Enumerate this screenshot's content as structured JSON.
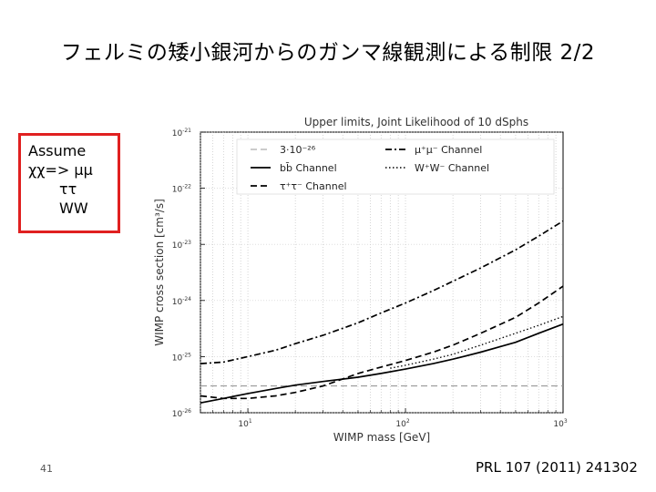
{
  "slide": {
    "title": "フェルミの矮小銀河からのガンマ線観測による制限 2/2",
    "page_number": "41",
    "reference": "PRL 107 (2011) 241302"
  },
  "assume_box": {
    "line1": "Assume",
    "line2": "χχ=> μμ",
    "line3": "ττ",
    "line4": "WW",
    "border_color": "#e02020"
  },
  "chart_data": {
    "type": "line",
    "title": "Upper limits, Joint Likelihood of 10 dSphs",
    "xlabel": "WIMP mass [GeV]",
    "ylabel": "WIMP cross section [cm³/s]",
    "x_scale": "log",
    "y_scale": "log",
    "xlim": [
      5,
      1000
    ],
    "ylim": [
      1e-26,
      1e-21
    ],
    "x_ticks": [
      {
        "label": "10",
        "exp": "1",
        "value": 10
      },
      {
        "label": "10",
        "exp": "2",
        "value": 100
      },
      {
        "label": "10",
        "exp": "3",
        "value": 1000
      }
    ],
    "y_ticks": [
      {
        "label": "10",
        "exp": "-21",
        "value": 1e-21
      },
      {
        "label": "10",
        "exp": "-22",
        "value": 1e-22
      },
      {
        "label": "10",
        "exp": "-23",
        "value": 1e-23
      },
      {
        "label": "10",
        "exp": "-24",
        "value": 1e-24
      },
      {
        "label": "10",
        "exp": "-25",
        "value": 1e-25
      },
      {
        "label": "10",
        "exp": "-26",
        "value": 1e-26
      }
    ],
    "legend_position": "top",
    "series": [
      {
        "name": "3·10⁻²⁶",
        "style": "dashed",
        "color": "#999999",
        "x": [
          5,
          1000
        ],
        "y": [
          3e-26,
          3e-26
        ]
      },
      {
        "name": "bb̄ Channel",
        "style": "solid",
        "color": "#000000",
        "x": [
          5,
          7,
          10,
          15,
          20,
          30,
          50,
          70,
          100,
          150,
          200,
          300,
          500,
          700,
          1000
        ],
        "y": [
          1.5e-26,
          1.8e-26,
          2.2e-26,
          2.7e-26,
          3.1e-26,
          3.6e-26,
          4.3e-26,
          5e-26,
          6e-26,
          7.5e-26,
          9e-26,
          1.2e-25,
          1.8e-25,
          2.6e-25,
          3.8e-25
        ]
      },
      {
        "name": "τ⁺τ⁻ Channel",
        "style": "dashed",
        "color": "#000000",
        "x": [
          5,
          7,
          10,
          15,
          20,
          30,
          40,
          50,
          70,
          100,
          150,
          200,
          300,
          500,
          700,
          1000
        ],
        "y": [
          2e-26,
          1.8e-26,
          1.8e-26,
          2e-26,
          2.3e-26,
          3e-26,
          4e-26,
          5e-26,
          6.5e-26,
          8.5e-26,
          1.2e-25,
          1.6e-25,
          2.6e-25,
          5e-25,
          9e-25,
          1.8e-24
        ]
      },
      {
        "name": "μ⁺μ⁻ Channel",
        "style": "dashdot",
        "color": "#000000",
        "x": [
          5,
          7,
          10,
          15,
          20,
          30,
          50,
          70,
          100,
          150,
          200,
          300,
          500,
          700,
          1000
        ],
        "y": [
          7.5e-26,
          8e-26,
          1e-25,
          1.3e-25,
          1.7e-25,
          2.4e-25,
          4e-25,
          6e-25,
          9e-25,
          1.5e-24,
          2.2e-24,
          3.8e-24,
          8e-24,
          1.4e-23,
          2.6e-23
        ]
      },
      {
        "name": "W⁺W⁻ Channel",
        "style": "dotted",
        "color": "#000000",
        "x": [
          80,
          100,
          150,
          200,
          300,
          500,
          700,
          1000
        ],
        "y": [
          6.2e-26,
          7e-26,
          9e-26,
          1.1e-25,
          1.6e-25,
          2.6e-25,
          3.6e-25,
          5.2e-25
        ]
      }
    ]
  }
}
